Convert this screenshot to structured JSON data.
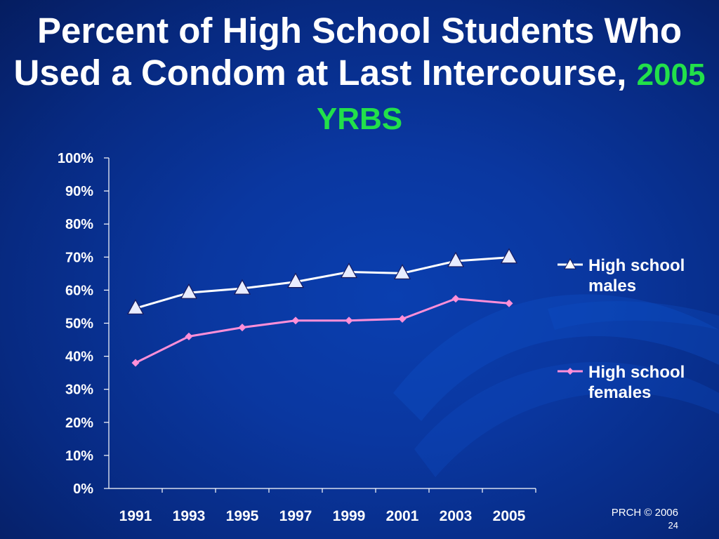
{
  "slide": {
    "title_main": "Percent of High School Students Who Used a Condom at Last Intercourse,",
    "title_accent": "2005 YRBS",
    "footer_credit": "PRCH © 2006",
    "page_number": "24"
  },
  "colors": {
    "background": "#0a37a0",
    "title_accent": "#22e04a",
    "males_line": "#ffffff",
    "females_line": "#ff8fd8",
    "axis": "#ffffff"
  },
  "chart_data": {
    "type": "line",
    "title": "",
    "xlabel": "",
    "ylabel": "",
    "categories": [
      "1991",
      "1993",
      "1995",
      "1997",
      "1999",
      "2001",
      "2003",
      "2005"
    ],
    "yticks": [
      "0%",
      "10%",
      "20%",
      "30%",
      "40%",
      "50%",
      "60%",
      "70%",
      "80%",
      "90%",
      "100%"
    ],
    "ylim": [
      0,
      100
    ],
    "grid": false,
    "legend_position": "right",
    "series": [
      {
        "name": "High school males",
        "values": [
          54.5,
          59.2,
          60.5,
          62.5,
          65.5,
          65.1,
          68.8,
          69.9
        ],
        "marker": "triangle",
        "color": "#ffffff"
      },
      {
        "name": "High school females",
        "values": [
          38.0,
          46.0,
          48.7,
          50.8,
          50.8,
          51.3,
          57.4,
          56.0
        ],
        "marker": "diamond",
        "color": "#ff8fd8"
      }
    ]
  }
}
